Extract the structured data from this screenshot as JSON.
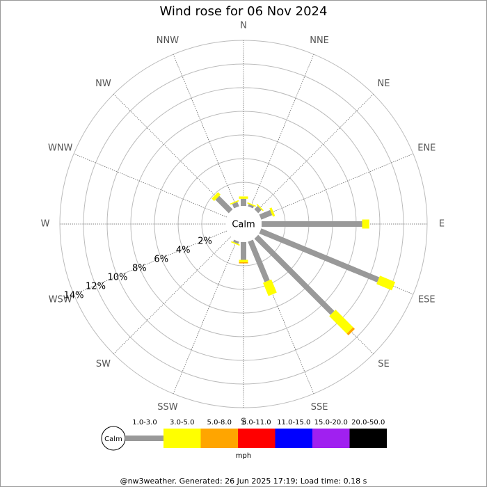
{
  "chart_data": {
    "type": "windrose",
    "title": "Wind rose for 06 Nov 2024",
    "calm_label": "Calm",
    "units": "mph",
    "footer": "@nw3weather. Generated: 26 Jun 2025 17:19; Load time: 0.18 s",
    "categories": [
      "N",
      "NNE",
      "NE",
      "ENE",
      "E",
      "ESE",
      "SE",
      "SSE",
      "S",
      "SSW",
      "SW",
      "WSW",
      "W",
      "WNW",
      "NW",
      "NNW"
    ],
    "rlim": [
      0,
      14
    ],
    "rticks": [
      {
        "value": 2,
        "label": "2%"
      },
      {
        "value": 4,
        "label": "4%"
      },
      {
        "value": 6,
        "label": "6%"
      },
      {
        "value": 8,
        "label": "8%"
      },
      {
        "value": 10,
        "label": "10%"
      },
      {
        "value": 12,
        "label": "12%"
      },
      {
        "value": 14,
        "label": "14%"
      }
    ],
    "grid": true,
    "series": [
      {
        "name": "1.0-3.0",
        "color": "#999999",
        "values": [
          0.6,
          0.2,
          0.4,
          1.0,
          8.5,
          10.8,
          9.1,
          3.7,
          1.5,
          0.2,
          0,
          0,
          0,
          0,
          1.6,
          0.4
        ]
      },
      {
        "name": "3.0-5.0",
        "color": "#ffff00",
        "values": [
          0.2,
          0.1,
          0.1,
          0.2,
          0.6,
          1.4,
          2.1,
          1.2,
          0.2,
          0.1,
          0,
          0,
          0,
          0,
          0.3,
          0.1
        ]
      },
      {
        "name": "5.0-8.0",
        "color": "#ffa500",
        "values": [
          0,
          0,
          0,
          0,
          0,
          0,
          0.2,
          0,
          0.1,
          0,
          0,
          0,
          0,
          0,
          0,
          0
        ]
      },
      {
        "name": "8.0-11.0",
        "color": "#ff0000",
        "values": [
          0,
          0,
          0,
          0,
          0,
          0,
          0,
          0,
          0,
          0,
          0,
          0,
          0,
          0,
          0,
          0
        ]
      },
      {
        "name": "11.0-15.0",
        "color": "#0000ff",
        "values": [
          0,
          0,
          0,
          0,
          0,
          0,
          0,
          0,
          0,
          0,
          0,
          0,
          0,
          0,
          0,
          0
        ]
      },
      {
        "name": "15.0-20.0",
        "color": "#a020f0",
        "values": [
          0,
          0,
          0,
          0,
          0,
          0,
          0,
          0,
          0,
          0,
          0,
          0,
          0,
          0,
          0,
          0
        ]
      },
      {
        "name": "20.0-50.0",
        "color": "#000000",
        "values": [
          0,
          0,
          0,
          0,
          0,
          0,
          0,
          0,
          0,
          0,
          0,
          0,
          0,
          0,
          0,
          0
        ]
      }
    ]
  }
}
